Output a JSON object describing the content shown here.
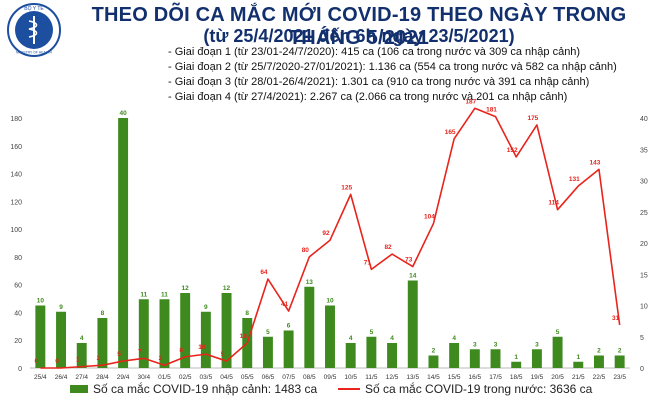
{
  "header": {
    "title": "THEO DÕI CA MẮC MỚI COVID-19 THEO NGÀY TRONG THÁNG 5/2021",
    "subtitle": "(từ 25/4/2021 đến 6h ngày 23/5/2021)",
    "logo_text": "BỘ Y TẾ",
    "logo_subtext": "MINISTRY OF HEALTH"
  },
  "phases": [
    "- Giai đoạn 1 (từ 23/01-24/7/2020): 415 ca (106 ca trong nước và 309 ca nhập cảnh)",
    "- Giai đoạn 2 (từ 25/7/2020-27/01/2021): 1.136 ca (554 ca trong nước và 582 ca nhập cảnh)",
    "- Giai đoạn 3 (từ 28/01-26/4/2021): 1.301 ca (910 ca trong nước và 391 ca nhập cảnh)",
    "- Giai đoạn 4 (từ 27/4/2021): 2.267 ca (2.066 ca trong nước và 201 ca nhập cảnh)"
  ],
  "colors": {
    "bar": "#3e8a1e",
    "line": "#e8241c",
    "title": "#13306e"
  },
  "chart_data": {
    "type": "bar+line",
    "categories": [
      "25/4",
      "26/4",
      "27/4",
      "28/4",
      "29/4",
      "30/4",
      "01/5",
      "02/5",
      "03/5",
      "04/5",
      "05/5",
      "06/5",
      "07/5",
      "08/5",
      "09/5",
      "10/5",
      "11/5",
      "12/5",
      "13/5",
      "14/5",
      "15/5",
      "16/5",
      "17/5",
      "18/5",
      "19/5",
      "20/5",
      "21/5",
      "22/5",
      "23/5"
    ],
    "left_axis": {
      "ticks": [
        0,
        20,
        40,
        60,
        80,
        100,
        120,
        140,
        160,
        180
      ],
      "ylim": [
        0,
        180
      ]
    },
    "right_axis": {
      "ticks": [
        0,
        5,
        10,
        15,
        20,
        25,
        30,
        35,
        40
      ],
      "ylim": [
        0,
        40
      ]
    },
    "series": [
      {
        "name": "Số ca mắc COVID-19 nhập cảnh: 1483 ca",
        "kind": "bar",
        "axis": "right",
        "values": [
          10,
          9,
          4,
          8,
          40,
          11,
          11,
          12,
          9,
          12,
          8,
          5,
          6,
          13,
          10,
          4,
          5,
          4,
          14,
          2,
          4,
          3,
          3,
          1,
          3,
          5,
          1,
          2,
          2
        ]
      },
      {
        "name": "Số ca mắc COVID-19 trong nước: 3636 ca",
        "kind": "line",
        "axis": "left",
        "values": [
          0,
          0,
          1,
          2,
          5,
          7,
          2,
          8,
          10,
          5,
          18,
          64,
          41,
          80,
          92,
          125,
          71,
          82,
          73,
          104,
          165,
          187,
          181,
          152,
          175,
          114,
          131,
          143,
          31
        ]
      }
    ],
    "grid": false,
    "legend": "bottom"
  }
}
